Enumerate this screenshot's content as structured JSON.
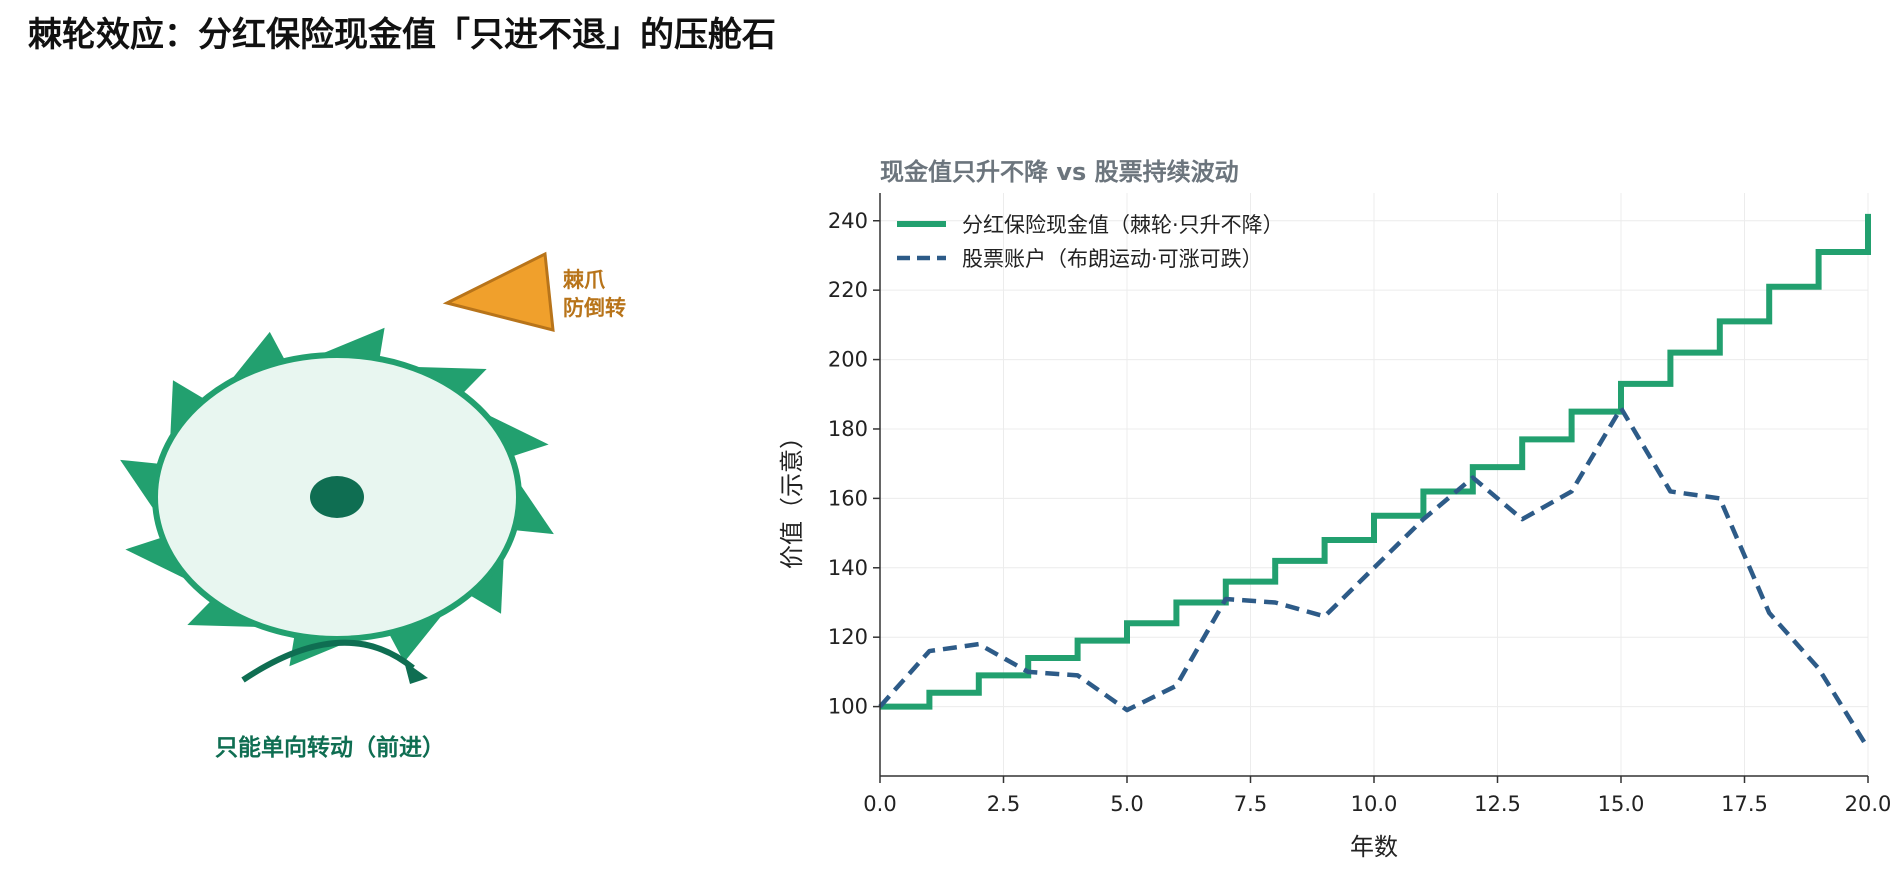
{
  "title": "棘轮效应：分红保险现金值「只进不退」的压舱石",
  "ratchet": {
    "pawl_label_line1": "棘爪",
    "pawl_label_line2": "防倒转",
    "direction_label": "只能单向转动（前进）",
    "colors": {
      "teeth": "#22a06f",
      "wheel_fill": "#e8f6f0",
      "hub": "#0f6e52",
      "pawl": "#f0a02c",
      "pawl_text": "#b8741a",
      "arrow": "#0f6e52"
    }
  },
  "chart_data": {
    "type": "line",
    "title": "现金值只升不降 vs 股票持续波动",
    "xlabel": "年数",
    "ylabel": "价值（示意）",
    "xlim": [
      0,
      20
    ],
    "ylim": [
      80,
      248
    ],
    "x_ticks": [
      "0.0",
      "2.5",
      "5.0",
      "7.5",
      "10.0",
      "12.5",
      "15.0",
      "17.5",
      "20.0"
    ],
    "y_ticks": [
      "100",
      "120",
      "140",
      "160",
      "180",
      "200",
      "220",
      "240"
    ],
    "grid": true,
    "legend_position": "top-left",
    "series": [
      {
        "name": "分红保险现金值（棘轮·只升不降）",
        "style": "step",
        "color": "#22a06f",
        "x": [
          0,
          1,
          2,
          3,
          4,
          5,
          6,
          7,
          8,
          9,
          10,
          11,
          12,
          13,
          14,
          15,
          16,
          17,
          18,
          19,
          20
        ],
        "values": [
          100,
          104,
          109,
          114,
          119,
          124,
          130,
          136,
          142,
          148,
          155,
          162,
          169,
          177,
          185,
          193,
          202,
          211,
          221,
          231,
          242
        ]
      },
      {
        "name": "股票账户（布朗运动·可涨可跌）",
        "style": "dashed",
        "color": "#2d5b88",
        "x": [
          0,
          1,
          2,
          3,
          4,
          5,
          6,
          7,
          8,
          9,
          10,
          11,
          12,
          13,
          14,
          15,
          16,
          17,
          18,
          19,
          20
        ],
        "values": [
          100,
          116,
          118,
          110,
          109,
          99,
          106,
          131,
          130,
          126,
          140,
          154,
          166,
          154,
          162,
          186,
          162,
          160,
          127,
          111,
          88
        ]
      }
    ]
  }
}
